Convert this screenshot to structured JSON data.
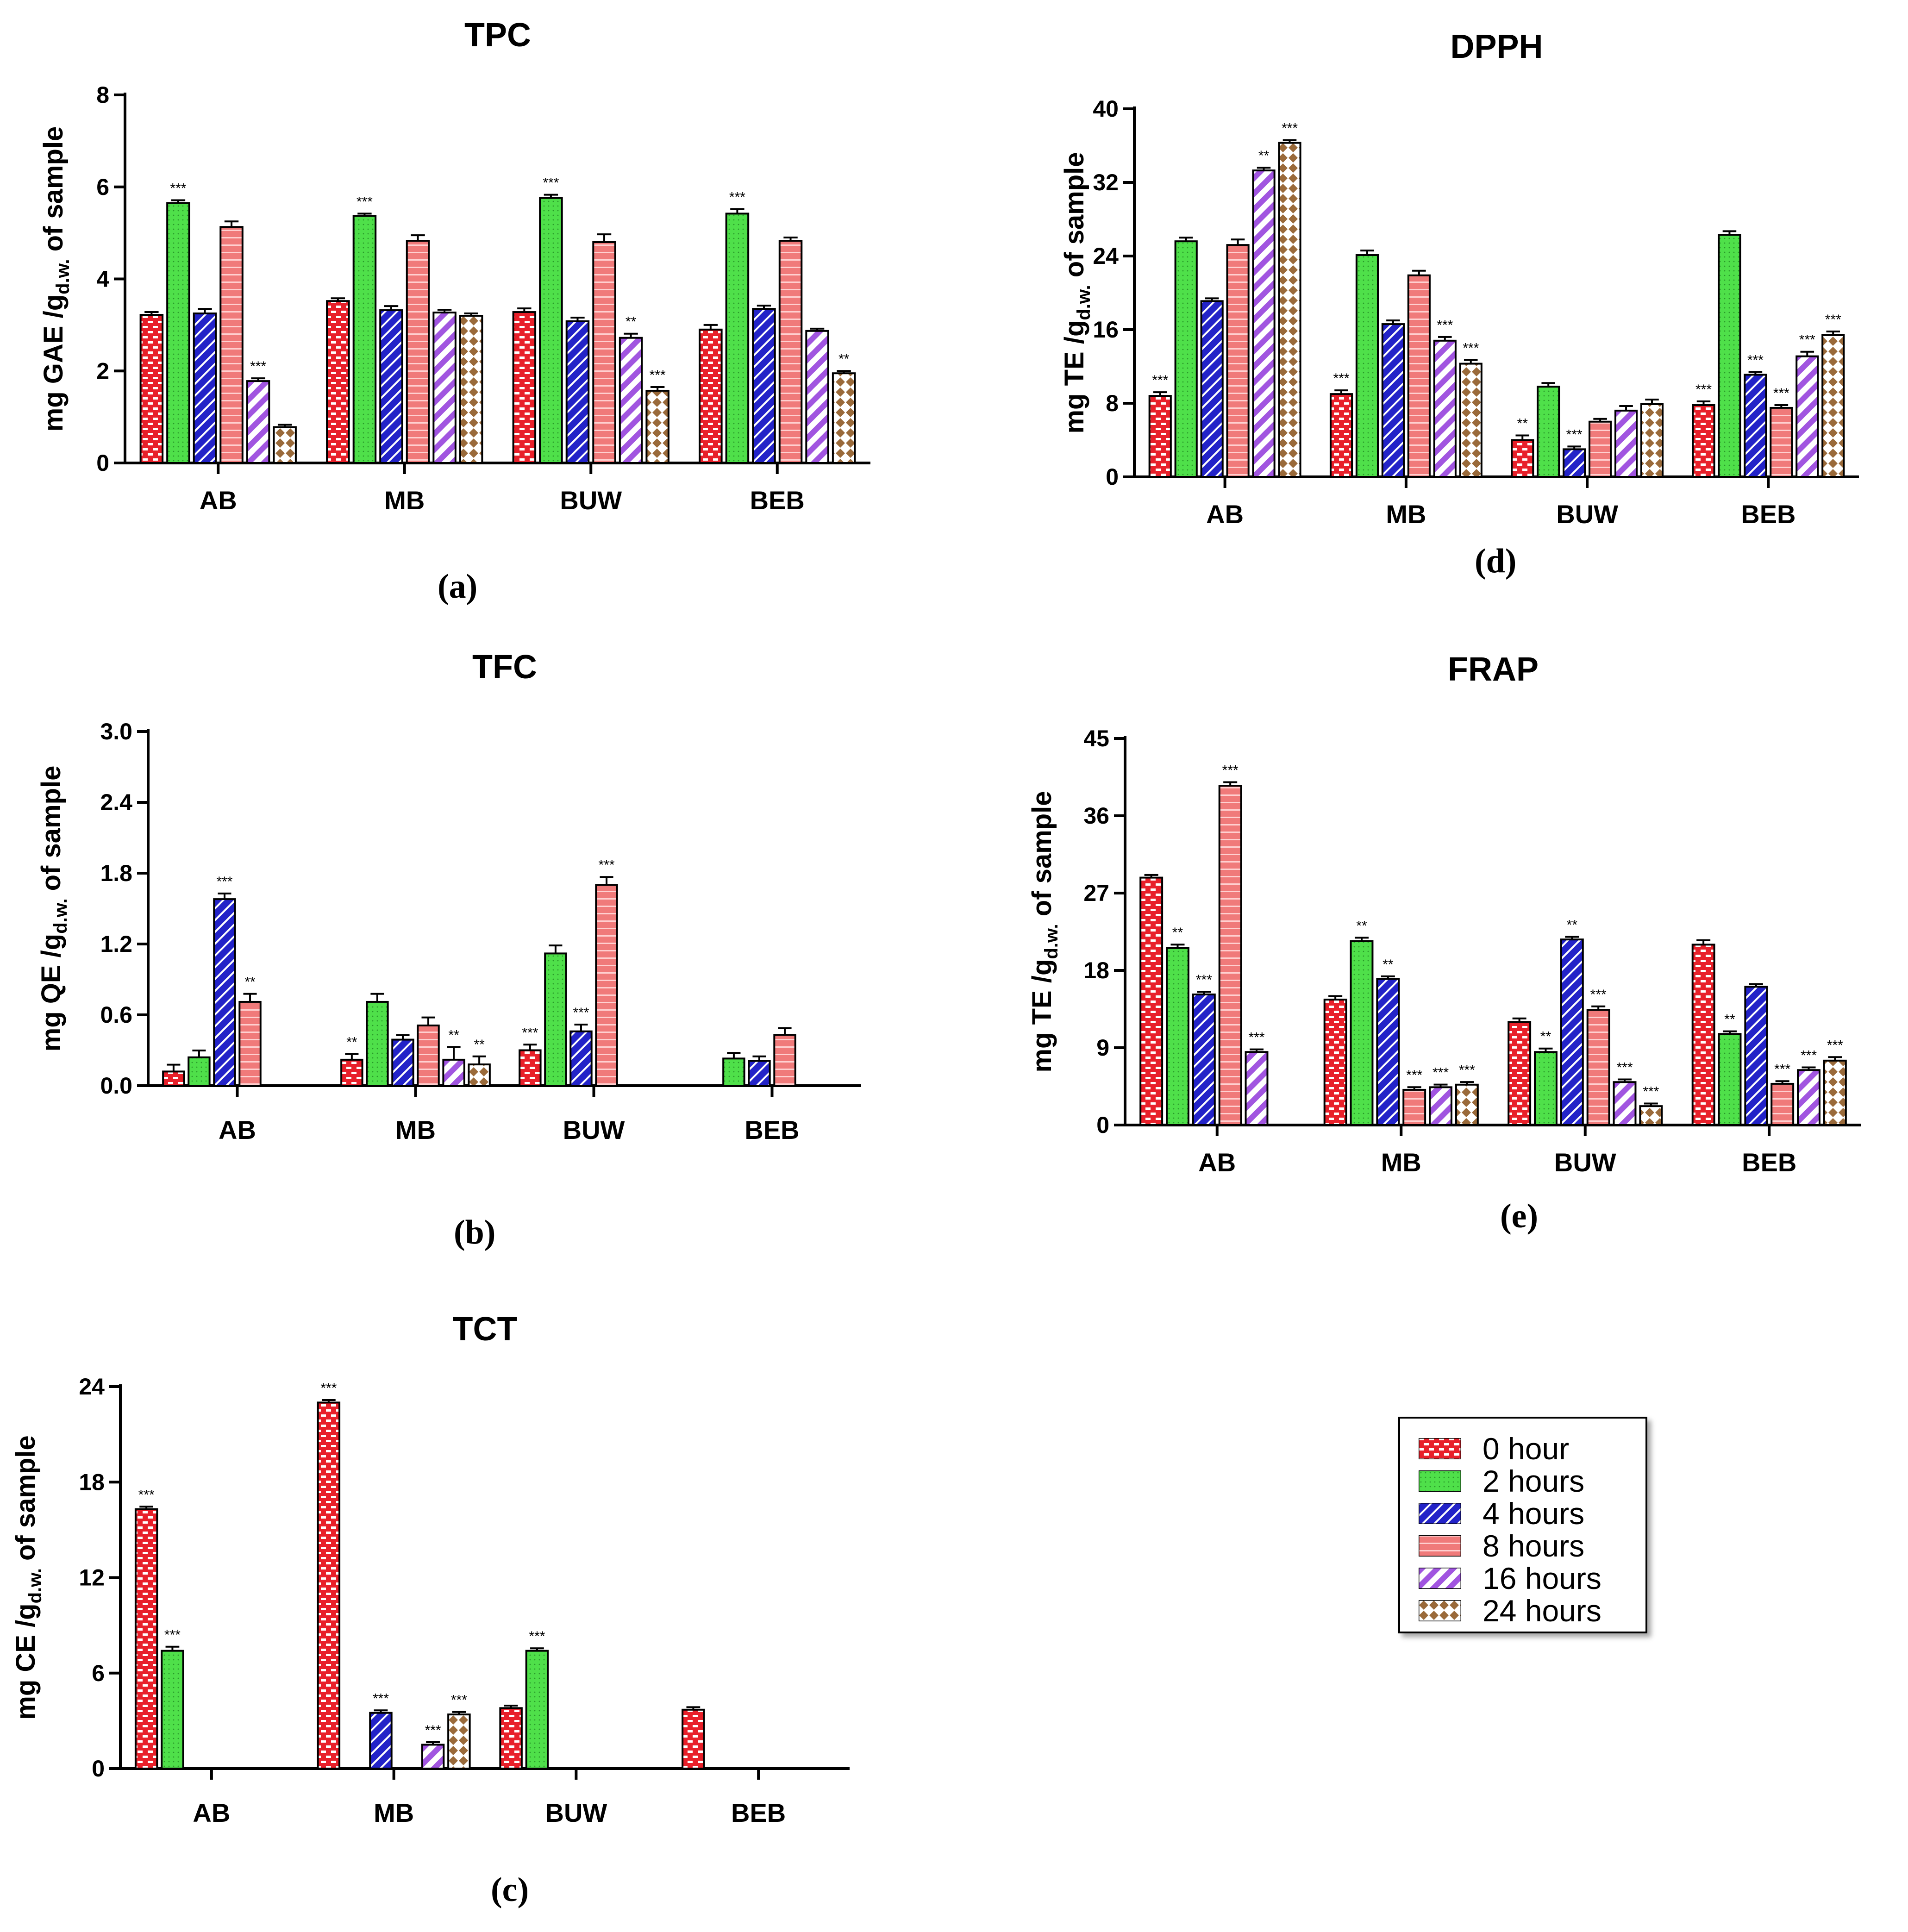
{
  "series_styles": [
    {
      "key": "h0",
      "label": "0 hour",
      "color": "#e8202a",
      "pattern": "checker"
    },
    {
      "key": "h2",
      "label": "2 hours",
      "color": "#4fe04a",
      "pattern": "dots"
    },
    {
      "key": "h4",
      "label": "4 hours",
      "color": "#2323c8",
      "pattern": "diag"
    },
    {
      "key": "h8",
      "label": "8 hours",
      "color": "#f07a7a",
      "pattern": "hstripe"
    },
    {
      "key": "h16",
      "label": "16 hours",
      "color": "#a155e0",
      "pattern": "diagwide"
    },
    {
      "key": "h24",
      "label": "24 hours",
      "color": "#9a6a3a",
      "pattern": "diamond"
    }
  ],
  "legend": {
    "items": [
      "0 hour",
      "2 hours",
      "4 hours",
      "8 hours",
      "16 hours",
      "24 hours"
    ]
  },
  "chart_data": [
    {
      "panel": "(a)",
      "type": "bar",
      "title": "TPC",
      "ylabel_main": "mg GAE /g",
      "ylabel_sub": "d.w.",
      "ylabel_tail": " of sample",
      "ylim": [
        0,
        8
      ],
      "yticks": [
        0,
        2,
        4,
        6,
        8
      ],
      "categories": [
        "AB",
        "MB",
        "BUW",
        "BEB"
      ],
      "series": [
        {
          "name": "0 hour",
          "values": [
            3.22,
            3.52,
            3.28,
            2.9
          ],
          "err": [
            0.04,
            0.04,
            0.06,
            0.08
          ],
          "sig": [
            "",
            "",
            "",
            ""
          ]
        },
        {
          "name": "2 hours",
          "values": [
            5.65,
            5.37,
            5.76,
            5.42
          ],
          "err": [
            0.04,
            0.03,
            0.05,
            0.08
          ],
          "sig": [
            "***",
            "***",
            "***",
            "***"
          ]
        },
        {
          "name": "4 hours",
          "values": [
            3.25,
            3.32,
            3.08,
            3.35
          ],
          "err": [
            0.08,
            0.07,
            0.06,
            0.05
          ],
          "sig": [
            "",
            "",
            "",
            ""
          ]
        },
        {
          "name": "8 hours",
          "values": [
            5.13,
            4.83,
            4.8,
            4.83
          ],
          "err": [
            0.1,
            0.1,
            0.15,
            0.05
          ],
          "sig": [
            "",
            "",
            "",
            ""
          ]
        },
        {
          "name": "16 hours",
          "values": [
            1.78,
            3.27,
            2.72,
            2.87
          ],
          "err": [
            0.04,
            0.04,
            0.07,
            0.03
          ],
          "sig": [
            "***",
            "",
            "**",
            ""
          ]
        },
        {
          "name": "24 hours",
          "values": [
            0.78,
            3.2,
            1.57,
            1.95
          ],
          "err": [
            0.03,
            0.03,
            0.06,
            0.03
          ],
          "sig": [
            "",
            "",
            "***",
            "**"
          ]
        }
      ]
    },
    {
      "panel": "(b)",
      "type": "bar",
      "title": "TFC",
      "ylabel_main": "mg QE /g",
      "ylabel_sub": "d.w.",
      "ylabel_tail": " of sample",
      "ylim": [
        0,
        3.0
      ],
      "yticks": [
        "0.0",
        "0.6",
        "1.2",
        "1.8",
        "2.4",
        "3.0"
      ],
      "categories": [
        "AB",
        "MB",
        "BUW",
        "BEB"
      ],
      "series": [
        {
          "name": "0 hour",
          "values": [
            0.12,
            0.22,
            0.3,
            0
          ],
          "err": [
            0.05,
            0.04,
            0.04,
            0
          ],
          "sig": [
            "",
            "**",
            "***",
            ""
          ]
        },
        {
          "name": "2 hours",
          "values": [
            0.24,
            0.71,
            1.12,
            0.23
          ],
          "err": [
            0.05,
            0.06,
            0.06,
            0.04
          ],
          "sig": [
            "",
            "",
            "",
            ""
          ]
        },
        {
          "name": "4 hours",
          "values": [
            1.58,
            0.39,
            0.46,
            0.21
          ],
          "err": [
            0.04,
            0.03,
            0.05,
            0.03
          ],
          "sig": [
            "***",
            "",
            "***",
            ""
          ]
        },
        {
          "name": "8 hours",
          "values": [
            0.71,
            0.51,
            1.7,
            0.43
          ],
          "err": [
            0.06,
            0.06,
            0.06,
            0.05
          ],
          "sig": [
            "**",
            "",
            "***",
            ""
          ]
        },
        {
          "name": "16 hours",
          "values": [
            0,
            0.22,
            0,
            0
          ],
          "err": [
            0,
            0.1,
            0,
            0
          ],
          "sig": [
            "",
            "**",
            "",
            ""
          ]
        },
        {
          "name": "24 hours",
          "values": [
            0,
            0.18,
            0,
            0
          ],
          "err": [
            0,
            0.06,
            0,
            0
          ],
          "sig": [
            "",
            "**",
            "",
            ""
          ]
        }
      ]
    },
    {
      "panel": "(c)",
      "type": "bar",
      "title": "TCT",
      "ylabel_main": "mg CE /g",
      "ylabel_sub": "d.w.",
      "ylabel_tail": " of sample",
      "ylim": [
        0,
        24
      ],
      "yticks": [
        0,
        6,
        12,
        18,
        24
      ],
      "categories": [
        "AB",
        "MB",
        "BUW",
        "BEB"
      ],
      "series": [
        {
          "name": "0 hour",
          "values": [
            16.3,
            23.0,
            3.8,
            3.7
          ],
          "err": [
            0.1,
            0.1,
            0.1,
            0.1
          ],
          "sig": [
            "***",
            "***",
            "",
            ""
          ]
        },
        {
          "name": "2 hours",
          "values": [
            7.4,
            0,
            7.4,
            0
          ],
          "err": [
            0.2,
            0,
            0.1,
            0
          ],
          "sig": [
            "***",
            "",
            "***",
            ""
          ]
        },
        {
          "name": "4 hours",
          "values": [
            0,
            3.5,
            0,
            0
          ],
          "err": [
            0,
            0.1,
            0,
            0
          ],
          "sig": [
            "",
            "***",
            "",
            ""
          ]
        },
        {
          "name": "8 hours",
          "values": [
            0,
            0,
            0,
            0
          ],
          "err": [
            0,
            0,
            0,
            0
          ],
          "sig": [
            "",
            "",
            "",
            ""
          ]
        },
        {
          "name": "16 hours",
          "values": [
            0,
            1.5,
            0,
            0
          ],
          "err": [
            0,
            0.1,
            0,
            0
          ],
          "sig": [
            "",
            "***",
            "",
            ""
          ]
        },
        {
          "name": "24 hours",
          "values": [
            0,
            3.4,
            0,
            0
          ],
          "err": [
            0,
            0.1,
            0,
            0
          ],
          "sig": [
            "",
            "***",
            "",
            ""
          ]
        }
      ]
    },
    {
      "panel": "(d)",
      "type": "bar",
      "title": "DPPH",
      "ylabel_main": "mg TE /g",
      "ylabel_sub": "d.w.",
      "ylabel_tail": " of sample",
      "ylim": [
        0,
        40
      ],
      "yticks": [
        0,
        8,
        16,
        24,
        32,
        40
      ],
      "categories": [
        "AB",
        "MB",
        "BUW",
        "BEB"
      ],
      "series": [
        {
          "name": "0 hour",
          "values": [
            8.8,
            9.0,
            4.0,
            7.8
          ],
          "err": [
            0.3,
            0.3,
            0.4,
            0.3
          ],
          "sig": [
            "***",
            "***",
            "**",
            "***"
          ]
        },
        {
          "name": "2 hours",
          "values": [
            25.6,
            24.1,
            9.8,
            26.3
          ],
          "err": [
            0.3,
            0.4,
            0.3,
            0.3
          ],
          "sig": [
            "",
            "",
            "",
            ""
          ]
        },
        {
          "name": "4 hours",
          "values": [
            19.1,
            16.6,
            3.0,
            11.1
          ],
          "err": [
            0.2,
            0.3,
            0.2,
            0.2
          ],
          "sig": [
            "",
            "",
            "***",
            "***"
          ]
        },
        {
          "name": "8 hours",
          "values": [
            25.2,
            21.9,
            6.0,
            7.5
          ],
          "err": [
            0.5,
            0.4,
            0.2,
            0.2
          ],
          "sig": [
            "",
            "",
            "",
            "***"
          ]
        },
        {
          "name": "16 hours",
          "values": [
            33.3,
            14.8,
            7.2,
            13.1
          ],
          "err": [
            0.2,
            0.3,
            0.4,
            0.4
          ],
          "sig": [
            "**",
            "***",
            "",
            "***"
          ]
        },
        {
          "name": "24 hours",
          "values": [
            36.3,
            12.3,
            7.9,
            15.4
          ],
          "err": [
            0.2,
            0.3,
            0.4,
            0.3
          ],
          "sig": [
            "***",
            "***",
            "",
            "***"
          ]
        }
      ]
    },
    {
      "panel": "(e)",
      "type": "bar",
      "title": "FRAP",
      "ylabel_main": "mg TE /g",
      "ylabel_sub": "d.w.",
      "ylabel_tail": " of sample",
      "ylim": [
        0,
        45
      ],
      "yticks": [
        0,
        9,
        18,
        27,
        36,
        45
      ],
      "categories": [
        "AB",
        "MB",
        "BUW",
        "BEB"
      ],
      "series": [
        {
          "name": "0 hour",
          "values": [
            28.8,
            14.6,
            12.0,
            21.0
          ],
          "err": [
            0.2,
            0.3,
            0.3,
            0.4
          ],
          "sig": [
            "",
            "",
            "",
            ""
          ]
        },
        {
          "name": "2 hours",
          "values": [
            20.6,
            21.4,
            8.5,
            10.6
          ],
          "err": [
            0.3,
            0.3,
            0.3,
            0.2
          ],
          "sig": [
            "**",
            "**",
            "**",
            "**"
          ]
        },
        {
          "name": "4 hours",
          "values": [
            15.2,
            17.0,
            21.6,
            16.1
          ],
          "err": [
            0.2,
            0.2,
            0.2,
            0.2
          ],
          "sig": [
            "***",
            "**",
            "**",
            ""
          ]
        },
        {
          "name": "8 hours",
          "values": [
            39.5,
            4.1,
            13.4,
            4.8
          ],
          "err": [
            0.3,
            0.2,
            0.3,
            0.2
          ],
          "sig": [
            "***",
            "***",
            "***",
            "***"
          ]
        },
        {
          "name": "16 hours",
          "values": [
            8.5,
            4.4,
            5.0,
            6.4
          ],
          "err": [
            0.2,
            0.2,
            0.2,
            0.2
          ],
          "sig": [
            "***",
            "***",
            "***",
            "***"
          ]
        },
        {
          "name": "24 hours",
          "values": [
            0,
            4.7,
            2.2,
            7.5
          ],
          "err": [
            0,
            0.2,
            0.2,
            0.3
          ],
          "sig": [
            "",
            "***",
            "***",
            "***"
          ]
        }
      ]
    }
  ]
}
